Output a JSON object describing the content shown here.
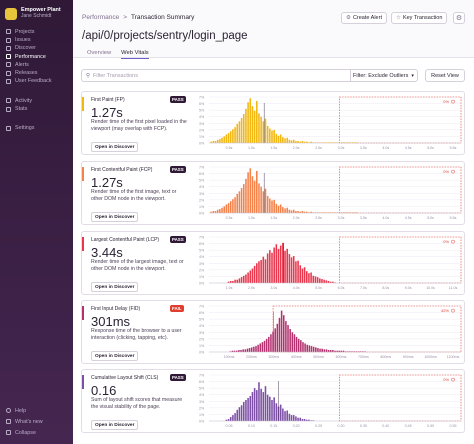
{
  "sidebar": {
    "org_name": "Empower Plant",
    "user_name": "Jane Schmidt",
    "items": [
      {
        "label": "Projects",
        "active": false
      },
      {
        "label": "Issues",
        "active": false
      },
      {
        "label": "Discover",
        "active": false
      },
      {
        "label": "Performance",
        "active": true
      },
      {
        "label": "Alerts",
        "active": false
      },
      {
        "label": "Releases",
        "active": false
      },
      {
        "label": "User Feedback",
        "active": false
      }
    ],
    "items2": [
      {
        "label": "Activity"
      },
      {
        "label": "Stats"
      }
    ],
    "items3": [
      {
        "label": "Settings"
      }
    ],
    "bottom": [
      {
        "label": "Help"
      },
      {
        "label": "What's new"
      },
      {
        "label": "Collapse"
      }
    ]
  },
  "breadcrumb": {
    "parent": "Performance",
    "separator": ">",
    "current": "Transaction Summary"
  },
  "header": {
    "title": "/api/0/projects/sentry/login_page",
    "create_alert": "Create Alert",
    "key_transaction": "Key Transaction",
    "settings_icon": "gear-icon"
  },
  "tabs": [
    {
      "label": "Overview",
      "active": false
    },
    {
      "label": "Web Vitals",
      "active": true
    }
  ],
  "search": {
    "placeholder": "Filter Transactions"
  },
  "filter_label": "Filter: Exclude Outliers",
  "reset_label": "Reset View",
  "colors": {
    "sidebar_top": "#2f1937",
    "pass": "#2f1937",
    "fail": "#e03e2f",
    "fp": "#f2b712",
    "fcp": "#f4834b",
    "lcp": "#e9384e",
    "fid": "#b2316e",
    "cls": "#7d4fa6",
    "poor_region": "#e03e2f"
  },
  "vitals": [
    {
      "name": "First Paint (FP)",
      "badge": "PASS",
      "status": "pass",
      "value": "1.27s",
      "description": "Render time of the first pixel loaded in the viewport (may overlap with FCP).",
      "discover": "Open in Discover",
      "color": "#f2b712",
      "poor_pct": "0%",
      "chart_data": {
        "type": "bar",
        "ytick_labels": [
          "7%",
          "6%",
          "5%",
          "4%",
          "3%",
          "2%",
          "1%",
          "0%"
        ],
        "xtick_labels": [
          "0.5s",
          "1.0s",
          "1.5s",
          "2.0s",
          "2.5s",
          "3.0s",
          "3.5s",
          "4.0s",
          "4.5s",
          "5.0s",
          "5.5s"
        ],
        "x": [
          0.05,
          0.1,
          0.15,
          0.2,
          0.25,
          0.3,
          0.35,
          0.4,
          0.45,
          0.5,
          0.55,
          0.6,
          0.65,
          0.7,
          0.75,
          0.8,
          0.85,
          0.9,
          0.95,
          1.0,
          1.05,
          1.1,
          1.15,
          1.2,
          1.25,
          1.3,
          1.35,
          1.4,
          1.45,
          1.5,
          1.55,
          1.6,
          1.65,
          1.7,
          1.75,
          1.8,
          1.85,
          1.9,
          1.95,
          2.0,
          2.05,
          2.1,
          2.15,
          2.2,
          2.25,
          2.3,
          2.35,
          2.4,
          2.45,
          2.5,
          2.55,
          2.6,
          2.65,
          2.7,
          2.75,
          2.8,
          2.85,
          2.9,
          2.95,
          3.0,
          3.05,
          3.1,
          3.15,
          3.2,
          3.25,
          3.3,
          3.35,
          3.4
        ],
        "values": [
          0.2,
          0.3,
          0.3,
          0.5,
          0.6,
          0.8,
          1.0,
          1.3,
          1.5,
          1.8,
          2.1,
          2.4,
          2.9,
          3.3,
          3.8,
          4.4,
          5.2,
          6.2,
          6.8,
          5.6,
          4.9,
          6.4,
          4.5,
          4.0,
          3.3,
          3.7,
          2.6,
          2.2,
          1.9,
          2.0,
          1.4,
          1.1,
          1.3,
          0.9,
          0.7,
          0.8,
          0.5,
          0.4,
          0.5,
          0.3,
          0.3,
          0.2,
          0.3,
          0.2,
          0.2,
          0.1,
          0.2,
          0.1,
          0.1,
          0.1,
          0.1,
          0.1,
          0.1,
          0.1,
          0.1,
          0.1,
          0.1,
          0.1,
          0.1,
          0.1,
          0.1,
          0.1,
          0.1,
          0.1,
          0.1,
          0.1,
          0.1,
          0.1
        ],
        "xlim": [
          0,
          5.8
        ],
        "ylim": [
          0,
          7
        ],
        "marker_x": 1.27,
        "poor_threshold": 3.0
      }
    },
    {
      "name": "First Contentful Paint (FCP)",
      "badge": "PASS",
      "status": "pass",
      "value": "1.27s",
      "description": "Render time of the first image, text or other DOM node in the viewport.",
      "discover": "Open in Discover",
      "color": "#f4834b",
      "poor_pct": "0%",
      "chart_data": {
        "type": "bar",
        "ytick_labels": [
          "7%",
          "6%",
          "5%",
          "4%",
          "3%",
          "2%",
          "1%",
          "0%"
        ],
        "xtick_labels": [
          "0.5s",
          "1.0s",
          "1.5s",
          "2.0s",
          "2.5s",
          "3.0s",
          "3.5s",
          "4.0s",
          "4.5s",
          "5.0s",
          "5.5s"
        ],
        "x": [
          0.05,
          0.1,
          0.15,
          0.2,
          0.25,
          0.3,
          0.35,
          0.4,
          0.45,
          0.5,
          0.55,
          0.6,
          0.65,
          0.7,
          0.75,
          0.8,
          0.85,
          0.9,
          0.95,
          1.0,
          1.05,
          1.1,
          1.15,
          1.2,
          1.25,
          1.3,
          1.35,
          1.4,
          1.45,
          1.5,
          1.55,
          1.6,
          1.65,
          1.7,
          1.75,
          1.8,
          1.85,
          1.9,
          1.95,
          2.0,
          2.05,
          2.1,
          2.15,
          2.2,
          2.25,
          2.3,
          2.35,
          2.4,
          2.45,
          2.5,
          2.55,
          2.6,
          2.65,
          2.7,
          2.75,
          2.8,
          2.85,
          2.9,
          2.95,
          3.0,
          3.05,
          3.1,
          3.15,
          3.2,
          3.25,
          3.3,
          3.35,
          3.4
        ],
        "values": [
          0.2,
          0.3,
          0.3,
          0.5,
          0.6,
          0.8,
          1.0,
          1.3,
          1.5,
          1.8,
          2.1,
          2.4,
          2.9,
          3.3,
          3.8,
          4.4,
          5.2,
          6.2,
          6.8,
          5.6,
          4.9,
          6.4,
          4.5,
          4.0,
          3.3,
          3.7,
          2.6,
          2.2,
          1.9,
          2.0,
          1.4,
          1.1,
          1.3,
          0.9,
          0.7,
          0.8,
          0.5,
          0.4,
          0.5,
          0.3,
          0.3,
          0.2,
          0.3,
          0.2,
          0.2,
          0.1,
          0.2,
          0.1,
          0.1,
          0.1,
          0.1,
          0.1,
          0.1,
          0.1,
          0.1,
          0.1,
          0.1,
          0.1,
          0.1,
          0.1,
          0.1,
          0.1,
          0.1,
          0.1,
          0.1,
          0.1,
          0.1,
          0.1
        ],
        "xlim": [
          0,
          5.8
        ],
        "ylim": [
          0,
          7
        ],
        "marker_x": 1.27,
        "poor_threshold": 3.0
      }
    },
    {
      "name": "Largest Contentful Paint (LCP)",
      "badge": "PASS",
      "status": "pass",
      "value": "3.44s",
      "description": "Render time of the largest image, text or other DOM node in the viewport.",
      "discover": "Open in Discover",
      "color": "#e9384e",
      "poor_pct": "0%",
      "chart_data": {
        "type": "bar",
        "ytick_labels": [
          "7%",
          "6%",
          "5%",
          "4%",
          "3%",
          "2%",
          "1%",
          "0%"
        ],
        "xtick_labels": [
          "1.0s",
          "2.0s",
          "3.0s",
          "4.0s",
          "5.0s",
          "6.0s",
          "7.0s",
          "8.0s",
          "9.0s",
          "10.0s",
          "11.0s"
        ],
        "x": [
          0.9,
          1.0,
          1.1,
          1.2,
          1.3,
          1.4,
          1.5,
          1.6,
          1.7,
          1.8,
          1.9,
          2.0,
          2.1,
          2.2,
          2.3,
          2.4,
          2.5,
          2.6,
          2.7,
          2.8,
          2.9,
          3.0,
          3.1,
          3.2,
          3.3,
          3.4,
          3.5,
          3.6,
          3.7,
          3.8,
          3.9,
          4.0,
          4.1,
          4.2,
          4.3,
          4.4,
          4.5,
          4.6,
          4.7,
          4.8,
          4.9,
          5.0,
          5.1,
          5.2,
          5.3,
          5.4,
          5.5,
          5.6,
          5.7,
          5.8
        ],
        "values": [
          0.2,
          0.3,
          0.3,
          0.5,
          0.5,
          0.7,
          0.9,
          1.1,
          1.3,
          1.6,
          1.9,
          2.2,
          2.6,
          3.0,
          3.3,
          3.5,
          4.0,
          3.6,
          4.5,
          5.0,
          4.6,
          5.4,
          5.9,
          5.2,
          5.7,
          6.1,
          4.9,
          5.2,
          4.4,
          3.9,
          4.1,
          3.3,
          3.4,
          2.7,
          2.2,
          2.4,
          1.8,
          1.5,
          1.6,
          1.1,
          1.0,
          0.9,
          0.7,
          0.6,
          0.5,
          0.4,
          0.3,
          0.2,
          0.2,
          0.1
        ],
        "xlim": [
          0,
          11.6
        ],
        "ylim": [
          0,
          7
        ],
        "marker_x": 3.44,
        "poor_threshold": 6.0
      }
    },
    {
      "name": "First Input Delay (FID)",
      "badge": "FAIL",
      "status": "fail",
      "value": "301ms",
      "description": "Response time of the browser to a user interaction (clicking, tapping, etc).",
      "discover": "Open in Discover",
      "color": "#b2316e",
      "poor_pct": "42%",
      "chart_data": {
        "type": "bar",
        "ytick_labels": [
          "7%",
          "6%",
          "5%",
          "4%",
          "3%",
          "2%",
          "1%",
          "0%"
        ],
        "xtick_labels": [
          "100ms",
          "200ms",
          "300ms",
          "400ms",
          "500ms",
          "600ms",
          "700ms",
          "800ms",
          "900ms",
          "1000ms",
          "1100ms"
        ],
        "x": [
          100,
          110,
          120,
          130,
          140,
          150,
          160,
          170,
          180,
          190,
          200,
          210,
          220,
          230,
          240,
          250,
          260,
          270,
          280,
          290,
          300,
          310,
          320,
          330,
          340,
          350,
          360,
          370,
          380,
          390,
          400,
          410,
          420,
          430,
          440,
          450,
          460,
          470,
          480,
          490,
          500,
          510,
          520,
          530,
          540,
          550,
          560,
          570,
          580,
          590,
          600,
          610,
          620,
          630,
          640,
          650,
          660,
          670,
          680,
          690,
          700,
          710,
          720,
          730
        ],
        "values": [
          0.1,
          0.2,
          0.2,
          0.2,
          0.3,
          0.3,
          0.4,
          0.4,
          0.5,
          0.6,
          0.7,
          0.8,
          0.9,
          1.1,
          1.3,
          1.5,
          1.7,
          2.0,
          2.3,
          2.7,
          3.1,
          3.6,
          4.3,
          5.2,
          6.3,
          5.6,
          4.7,
          4.1,
          3.5,
          3.0,
          2.7,
          2.3,
          2.0,
          1.8,
          1.5,
          1.3,
          1.1,
          1.0,
          0.9,
          0.8,
          0.7,
          0.6,
          0.5,
          0.5,
          0.4,
          0.4,
          0.3,
          0.3,
          0.3,
          0.2,
          0.2,
          0.2,
          0.2,
          0.2,
          0.1,
          0.1,
          0.1,
          0.1,
          0.1,
          0.1,
          0.1,
          0.1,
          0.1,
          0.1
        ],
        "xlim": [
          0,
          1180
        ],
        "ylim": [
          0,
          7
        ],
        "marker_x": 301,
        "poor_threshold": 300
      }
    },
    {
      "name": "Cumulative Layout Shift (CLS)",
      "badge": "PASS",
      "status": "pass",
      "value": "0.16",
      "description": "Sum of layout shift scores that measure the visual stability of the page.",
      "discover": "Open in Discover",
      "color": "#7d4fa6",
      "poor_pct": "0%",
      "chart_data": {
        "type": "bar",
        "ytick_labels": [
          "7%",
          "6%",
          "5%",
          "4%",
          "3%",
          "2%",
          "1%",
          "0%"
        ],
        "xtick_labels": [
          "0.05",
          "0.10",
          "0.15",
          "0.20",
          "0.25",
          "0.30",
          "0.35",
          "0.40",
          "0.45",
          "0.50",
          "0.55"
        ],
        "x": [
          0.04,
          0.045,
          0.05,
          0.055,
          0.06,
          0.065,
          0.07,
          0.075,
          0.08,
          0.085,
          0.09,
          0.095,
          0.1,
          0.105,
          0.11,
          0.115,
          0.12,
          0.125,
          0.13,
          0.135,
          0.14,
          0.145,
          0.15,
          0.155,
          0.16,
          0.165,
          0.17,
          0.175,
          0.18,
          0.185,
          0.19,
          0.195,
          0.2,
          0.205,
          0.21,
          0.215,
          0.22,
          0.225,
          0.23,
          0.235,
          0.24
        ],
        "values": [
          0.2,
          0.3,
          0.6,
          0.9,
          1.2,
          1.7,
          2.1,
          2.4,
          2.9,
          3.2,
          3.5,
          3.8,
          4.4,
          5.0,
          4.7,
          5.9,
          4.9,
          4.4,
          5.3,
          4.0,
          3.7,
          3.2,
          3.6,
          2.7,
          2.2,
          2.5,
          1.9,
          1.5,
          1.6,
          1.1,
          0.9,
          0.9,
          0.7,
          0.5,
          0.5,
          0.3,
          0.3,
          0.2,
          0.2,
          0.1,
          0.1
        ],
        "xlim": [
          0,
          0.58
        ],
        "ylim": [
          0,
          7
        ],
        "marker_x": 0.16,
        "poor_threshold": 0.3
      }
    }
  ]
}
